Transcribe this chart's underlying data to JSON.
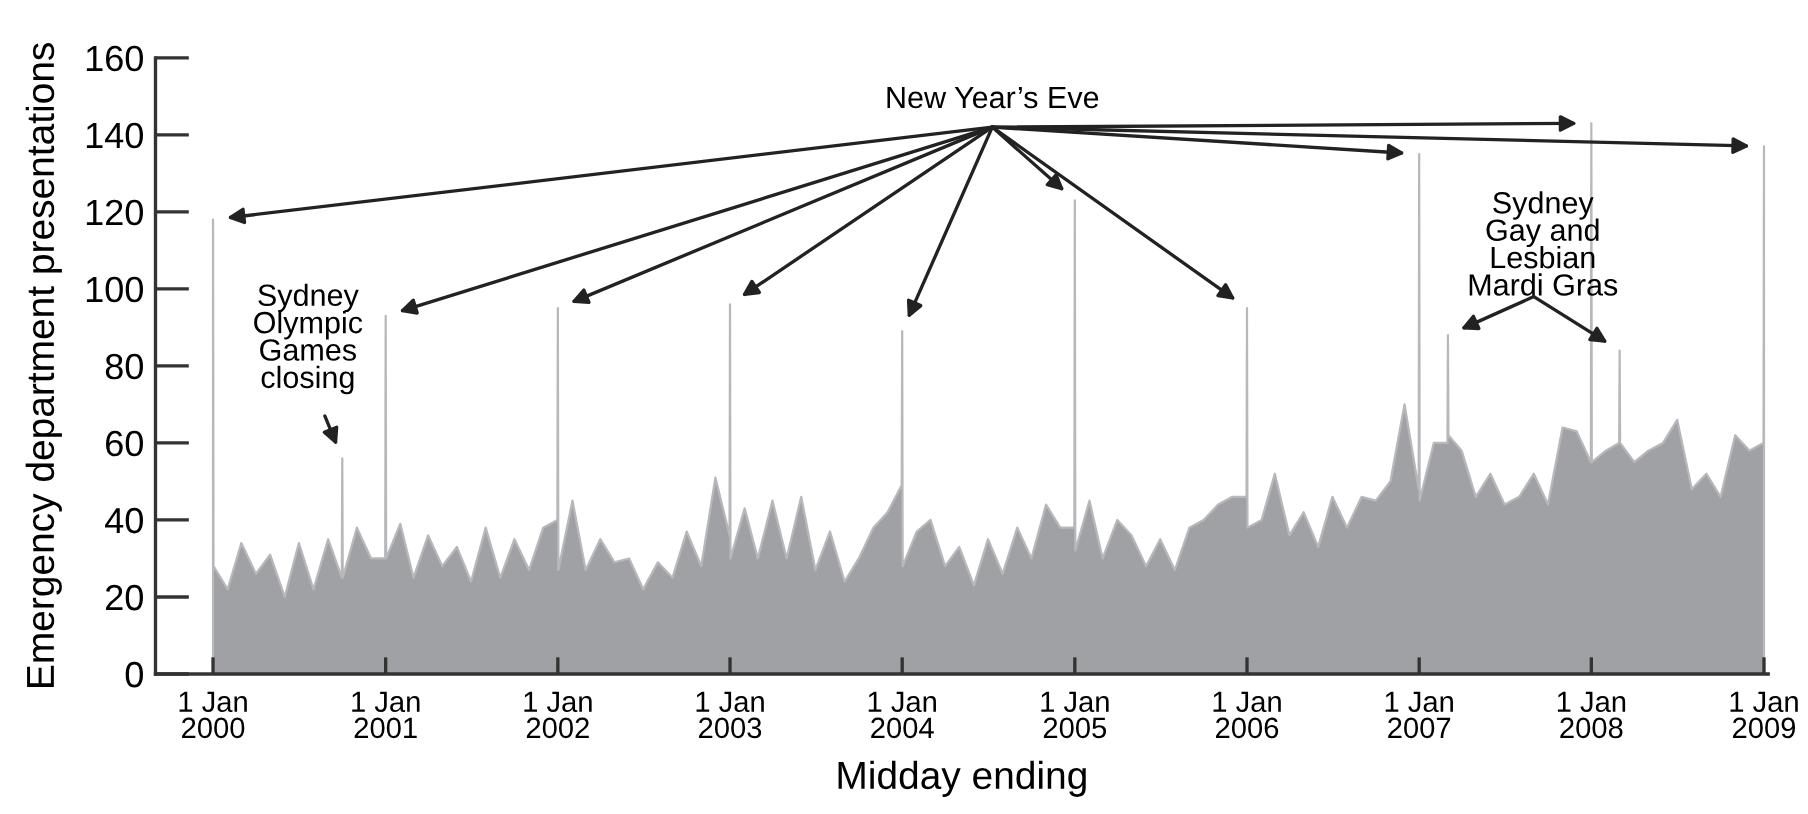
{
  "chart_data": {
    "type": "area",
    "xlabel": "Midday ending",
    "ylabel": "Emergency department presentations",
    "x": [
      "2000-01-01",
      "2000-01-02",
      "2000-02-01",
      "2000-03-01",
      "2000-04-01",
      "2000-05-01",
      "2000-06-01",
      "2000-07-01",
      "2000-08-01",
      "2000-09-01",
      "2000-09-30",
      "2000-10-01",
      "2000-10-02",
      "2000-11-01",
      "2000-12-01",
      "2000-12-31",
      "2001-01-01",
      "2001-01-02",
      "2001-02-01",
      "2001-03-01",
      "2001-04-01",
      "2001-05-01",
      "2001-06-01",
      "2001-07-01",
      "2001-08-01",
      "2001-09-01",
      "2001-10-01",
      "2001-11-01",
      "2001-12-01",
      "2001-12-31",
      "2002-01-01",
      "2002-01-02",
      "2002-02-01",
      "2002-03-01",
      "2002-04-01",
      "2002-05-01",
      "2002-06-01",
      "2002-07-01",
      "2002-08-01",
      "2002-09-01",
      "2002-10-01",
      "2002-11-01",
      "2002-12-01",
      "2002-12-31",
      "2003-01-01",
      "2003-01-02",
      "2003-02-01",
      "2003-03-01",
      "2003-04-01",
      "2003-05-01",
      "2003-06-01",
      "2003-07-01",
      "2003-08-01",
      "2003-09-01",
      "2003-10-01",
      "2003-11-01",
      "2003-12-01",
      "2003-12-31",
      "2004-01-01",
      "2004-01-02",
      "2004-02-01",
      "2004-03-01",
      "2004-04-01",
      "2004-05-01",
      "2004-06-01",
      "2004-07-01",
      "2004-08-01",
      "2004-09-01",
      "2004-10-01",
      "2004-11-01",
      "2004-12-01",
      "2004-12-31",
      "2005-01-01",
      "2005-01-02",
      "2005-02-01",
      "2005-03-01",
      "2005-04-01",
      "2005-05-01",
      "2005-06-01",
      "2005-07-01",
      "2005-08-01",
      "2005-09-01",
      "2005-10-01",
      "2005-11-01",
      "2005-12-01",
      "2005-12-31",
      "2006-01-01",
      "2006-01-02",
      "2006-02-01",
      "2006-03-01",
      "2006-04-01",
      "2006-05-01",
      "2006-06-01",
      "2006-07-01",
      "2006-08-01",
      "2006-09-01",
      "2006-10-01",
      "2006-11-01",
      "2006-12-01",
      "2006-12-31",
      "2007-01-01",
      "2007-01-02",
      "2007-02-01",
      "2007-03-02",
      "2007-03-03",
      "2007-03-04",
      "2007-04-01",
      "2007-05-01",
      "2007-06-01",
      "2007-07-01",
      "2007-08-01",
      "2007-09-01",
      "2007-10-01",
      "2007-11-01",
      "2007-12-01",
      "2007-12-31",
      "2008-01-01",
      "2008-01-02",
      "2008-02-01",
      "2008-02-29",
      "2008-03-01",
      "2008-03-02",
      "2008-04-01",
      "2008-05-01",
      "2008-06-01",
      "2008-07-01",
      "2008-08-01",
      "2008-09-01",
      "2008-10-01",
      "2008-11-01",
      "2008-12-01",
      "2008-12-31",
      "2009-01-01"
    ],
    "values": [
      118,
      28,
      22,
      34,
      26,
      31,
      20,
      34,
      22,
      35,
      25,
      56,
      25,
      38,
      30,
      30,
      93,
      30,
      39,
      25,
      36,
      28,
      33,
      24,
      38,
      25,
      35,
      27,
      38,
      40,
      95,
      27,
      45,
      27,
      35,
      29,
      30,
      22,
      29,
      25,
      37,
      28,
      51,
      36,
      96,
      30,
      43,
      30,
      45,
      30,
      46,
      27,
      37,
      24,
      30,
      38,
      42,
      49,
      89,
      28,
      37,
      40,
      28,
      33,
      23,
      35,
      26,
      38,
      30,
      44,
      38,
      38,
      123,
      32,
      45,
      30,
      40,
      36,
      28,
      35,
      27,
      38,
      40,
      44,
      46,
      46,
      95,
      38,
      40,
      52,
      36,
      42,
      33,
      46,
      38,
      46,
      45,
      50,
      70,
      48,
      135,
      45,
      60,
      60,
      88,
      62,
      58,
      46,
      52,
      44,
      46,
      52,
      44,
      64,
      63,
      55,
      143,
      55,
      58,
      60,
      84,
      60,
      55,
      58,
      60,
      66,
      48,
      52,
      46,
      62,
      58,
      60,
      137
    ],
    "color": "#a0a1a5",
    "xlim": [
      "1999-09-01",
      "2009-01-10"
    ],
    "ylim": [
      0,
      160
    ],
    "yticks": [
      0,
      20,
      40,
      60,
      80,
      100,
      120,
      140,
      160
    ],
    "xticks": [
      {
        "value": "2000-01-01",
        "label": "1 Jan\n2000"
      },
      {
        "value": "2001-01-01",
        "label": "1 Jan\n2001"
      },
      {
        "value": "2002-01-01",
        "label": "1 Jan\n2002"
      },
      {
        "value": "2003-01-01",
        "label": "1 Jan\n2003"
      },
      {
        "value": "2004-01-01",
        "label": "1 Jan\n2004"
      },
      {
        "value": "2005-01-01",
        "label": "1 Jan\n2005"
      },
      {
        "value": "2006-01-01",
        "label": "1 Jan\n2006"
      },
      {
        "value": "2007-01-01",
        "label": "1 Jan\n2007"
      },
      {
        "value": "2008-01-01",
        "label": "1 Jan\n2008"
      },
      {
        "value": "2009-01-01",
        "label": "1 Jan\n2009"
      }
    ],
    "annotations": [
      {
        "text": "New Year’s Eve",
        "x": "2000-01-01",
        "y": 118
      },
      {
        "text": "Sydney\nOlympic\nGames\nclosing",
        "x": "2000-10-01",
        "y": 56
      },
      {
        "text": "Sydney\nGay and\nLesbian\nMardi Gras",
        "x": "2007-03-03",
        "y": 88
      }
    ],
    "grid": false,
    "legend": false
  }
}
